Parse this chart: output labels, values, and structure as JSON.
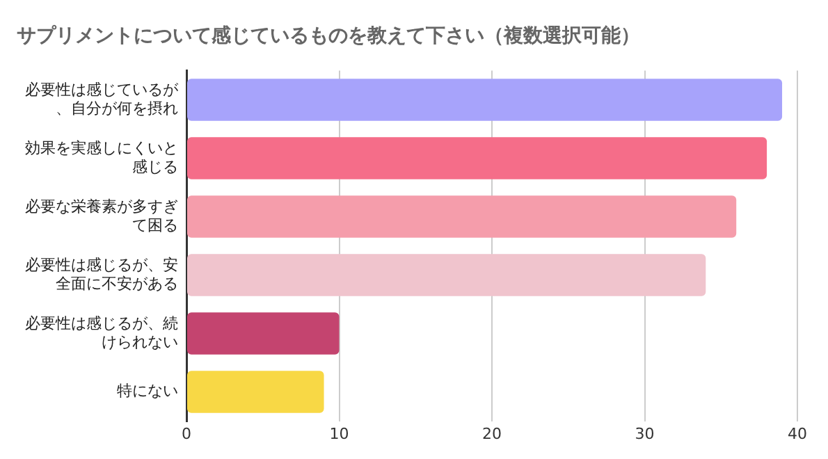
{
  "chart_data": {
    "type": "bar",
    "orientation": "horizontal",
    "title": "サプリメントについて感じているものを教えて下さい（複数選択可能）",
    "categories": [
      "必要性は感じているが、自分が何を摂れ",
      "効果を実感しにくいと感じる",
      "必要な栄養素が多すぎて困る",
      "必要性は感じるが、安全面に不安がある",
      "必要性は感じるが、続けられない",
      "特にない"
    ],
    "values": [
      39,
      38,
      36,
      34,
      10,
      9
    ],
    "colors": [
      "#a7a3fb",
      "#f56d89",
      "#f59dab",
      "#f0c4cd",
      "#c4446f",
      "#f8d845"
    ],
    "xlim": [
      0,
      40
    ],
    "xticks": [
      0,
      10,
      20,
      30,
      40
    ],
    "grid": "x",
    "legend": false
  }
}
